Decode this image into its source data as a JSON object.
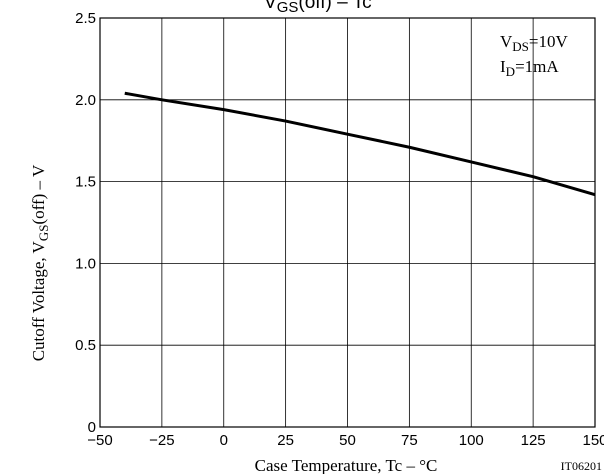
{
  "chart_data": {
    "type": "line",
    "title_main": "V",
    "title_sub": "GS",
    "title_rest": "(off)  –  Tc",
    "xlabel": "Case Temperature, Tc  –  °C",
    "ylabel_main": "Cutoff Voltage, V",
    "ylabel_sub": "GS",
    "ylabel_rest": "(off)  –  V",
    "xlim": [
      -50,
      150
    ],
    "ylim": [
      0,
      2.5
    ],
    "x_ticks": [
      "−50",
      "−25",
      "0",
      "25",
      "50",
      "75",
      "100",
      "125",
      "150"
    ],
    "y_ticks": [
      "0",
      "0.5",
      "1.0",
      "1.5",
      "2.0",
      "2.5"
    ],
    "grid": true,
    "conditions": [
      {
        "main": "V",
        "sub": "DS",
        "rest": "=10V"
      },
      {
        "main": "I",
        "sub": "D",
        "rest": "=1mA"
      }
    ],
    "figure_id": "IT06201",
    "series": [
      {
        "x": [
          -40,
          -25,
          0,
          25,
          50,
          75,
          100,
          125,
          150
        ],
        "y": [
          2.04,
          2.0,
          1.94,
          1.87,
          1.79,
          1.71,
          1.62,
          1.53,
          1.42
        ]
      }
    ]
  }
}
